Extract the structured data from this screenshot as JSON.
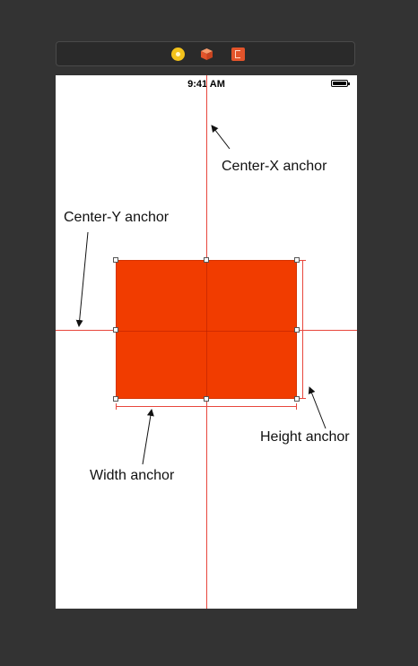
{
  "toolbar": {
    "icons": [
      "view-controller-icon",
      "first-responder-icon",
      "exit-icon"
    ]
  },
  "status_bar": {
    "time": "9:41 AM"
  },
  "callouts": {
    "center_x": "Center-X anchor",
    "center_y": "Center-Y anchor",
    "width": "Width anchor",
    "height": "Height anchor"
  },
  "colors": {
    "view_fill": "#f13c00",
    "guide_line": "#e8473d",
    "canvas_bg": "#333333"
  }
}
